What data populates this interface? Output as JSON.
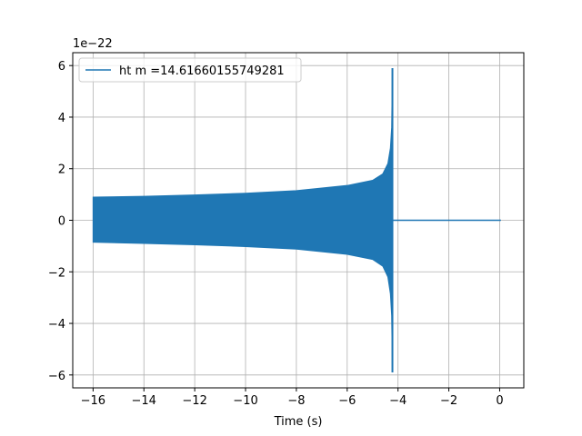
{
  "chart_data": {
    "type": "line",
    "xlabel": "Time (s)",
    "ylabel": "",
    "y_offset_label": "1e−22",
    "xlim": [
      -16.8,
      0.95
    ],
    "ylim": [
      -6.5,
      6.5
    ],
    "x_ticks": [
      {
        "value": -16,
        "label": "−16"
      },
      {
        "value": -14,
        "label": "−14"
      },
      {
        "value": -12,
        "label": "−12"
      },
      {
        "value": -10,
        "label": "−10"
      },
      {
        "value": -8,
        "label": "−8"
      },
      {
        "value": -6,
        "label": "−6"
      },
      {
        "value": -4,
        "label": "−4"
      },
      {
        "value": -2,
        "label": "−2"
      },
      {
        "value": 0,
        "label": "0"
      }
    ],
    "y_ticks": [
      {
        "value": 6,
        "label": "6"
      },
      {
        "value": 4,
        "label": "4"
      },
      {
        "value": 2,
        "label": "2"
      },
      {
        "value": 0,
        "label": "0"
      },
      {
        "value": -2,
        "label": "−2"
      },
      {
        "value": -4,
        "label": "−4"
      },
      {
        "value": -6,
        "label": "−6"
      }
    ],
    "grid": true,
    "legend_position": "top-left",
    "series": [
      {
        "name": "ht m =14.61660155749281",
        "color": "#1f77b4",
        "envelope": {
          "x": [
            -16.0,
            -14.0,
            -12.0,
            -10.0,
            -8.0,
            -6.0,
            -5.0,
            -4.6,
            -4.4,
            -4.3,
            -4.25,
            -4.22
          ],
          "upper": [
            0.9,
            0.93,
            0.98,
            1.05,
            1.15,
            1.35,
            1.55,
            1.8,
            2.2,
            2.8,
            3.6,
            5.9
          ],
          "lower": [
            -0.85,
            -0.9,
            -0.95,
            -1.02,
            -1.12,
            -1.32,
            -1.52,
            -1.78,
            -2.2,
            -2.85,
            -3.7,
            -5.9
          ]
        },
        "flat_segment": {
          "x": [
            -4.15,
            0.05
          ],
          "y": [
            0,
            0
          ]
        }
      }
    ]
  }
}
